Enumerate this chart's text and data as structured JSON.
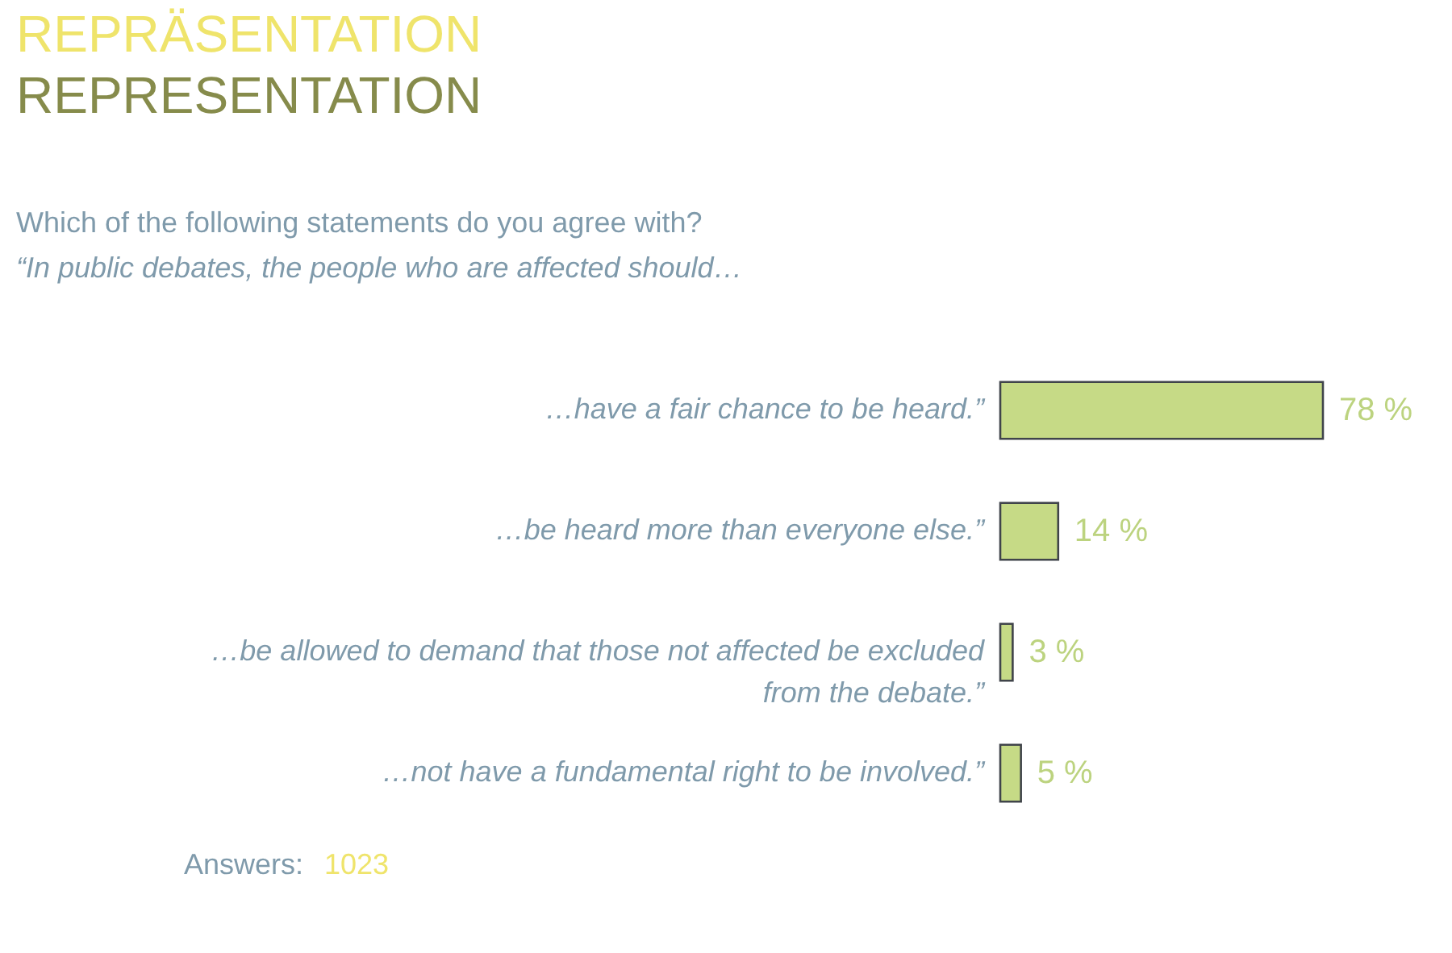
{
  "chart_data": {
    "type": "bar",
    "orientation": "horizontal",
    "title": "REPRÄSENTATION",
    "subtitle": "REPRESENTATION",
    "categories": [
      "…have a fair chance to be heard.”",
      "…be heard more than everyone else.”",
      "…be allowed to demand that those not affected be excluded from the debate.”",
      "…not have a fundamental right to be involved.”"
    ],
    "series": [
      {
        "color": "#c6da86",
        "values": [
          78,
          14,
          3,
          5
        ],
        "value_labels": [
          "78 %",
          "14 %",
          "3 %",
          "5 %"
        ]
      }
    ],
    "tick_labels": "y",
    "annotations": [
      "Which of the following statements do you agree with?",
      "“In public debates, the people who are affected should…",
      "Answers:",
      "1023"
    ]
  }
}
